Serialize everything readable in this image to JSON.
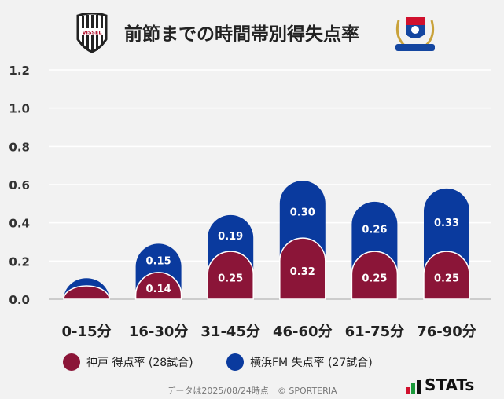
{
  "title": "前節までの時間帯別得失点率",
  "logos": {
    "left": "VISSEL",
    "right": "Yokohama F·Marinos"
  },
  "chart_data": {
    "type": "bar",
    "stacked": true,
    "categories": [
      "0-15分",
      "16-30分",
      "31-45分",
      "46-60分",
      "61-75分",
      "76-90分"
    ],
    "series": [
      {
        "name": "神戸 得点率 (28試合)",
        "color": "#8b1538",
        "values": [
          0.07,
          0.14,
          0.25,
          0.32,
          0.25,
          0.25
        ],
        "labels": [
          "",
          "0.14",
          "0.25",
          "0.32",
          "0.25",
          "0.25"
        ]
      },
      {
        "name": "横浜FM 失点率 (27試合)",
        "color": "#0a3a9e",
        "values": [
          0.04,
          0.15,
          0.19,
          0.3,
          0.26,
          0.33
        ],
        "labels": [
          "",
          "0.15",
          "0.19",
          "0.30",
          "0.26",
          "0.33"
        ]
      }
    ],
    "yticks": [
      "0.0",
      "0.2",
      "0.4",
      "0.6",
      "0.8",
      "1.0",
      "1.2"
    ],
    "ylim": [
      0,
      1.2
    ],
    "grid": true,
    "legend": "bottom"
  },
  "footer": "データは2025/08/24時点　© SPORTERIA",
  "brand": "STATs"
}
